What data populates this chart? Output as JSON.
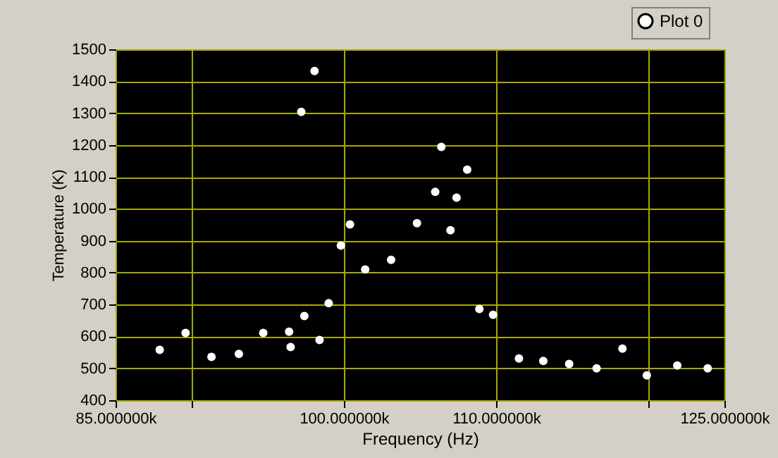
{
  "chart_data": {
    "type": "scatter",
    "xlabel": "Frequency (Hz)",
    "ylabel": "Temperature (K)",
    "series": [
      {
        "name": "Plot 0",
        "color": "#ffffff",
        "x": [
          87900,
          89600,
          91300,
          93100,
          94700,
          96400,
          96500,
          97200,
          97400,
          98070,
          98400,
          99000,
          99800,
          100400,
          101400,
          103100,
          104800,
          106000,
          106400,
          107000,
          107400,
          108100,
          108900,
          109800,
          111500,
          113100,
          114800,
          116600,
          118300,
          119900,
          121900,
          123900
        ],
        "values": [
          558,
          611,
          536,
          545,
          611,
          615,
          567,
          1304,
          664,
          1432,
          589,
          704,
          885,
          951,
          810,
          840,
          955,
          1053,
          1194,
          933,
          1035,
          1123,
          686,
          668,
          531,
          523,
          514,
          500,
          562,
          478,
          509,
          500
        ]
      }
    ],
    "xlim": [
      85000,
      125000
    ],
    "xticks": [
      {
        "value": 85000,
        "label": "85.000000k"
      },
      {
        "value": 90000,
        "label": null
      },
      {
        "value": 100000,
        "label": "100.000000k"
      },
      {
        "value": 110000,
        "label": "110.000000k"
      },
      {
        "value": 120000,
        "label": null
      },
      {
        "value": 125000,
        "label": "125.000000k"
      }
    ],
    "ylim": [
      400,
      1500
    ],
    "yticks": [
      400,
      500,
      600,
      700,
      800,
      900,
      1000,
      1100,
      1200,
      1300,
      1400,
      1500
    ],
    "grid": true,
    "legend": "top right",
    "marker": "circle"
  }
}
